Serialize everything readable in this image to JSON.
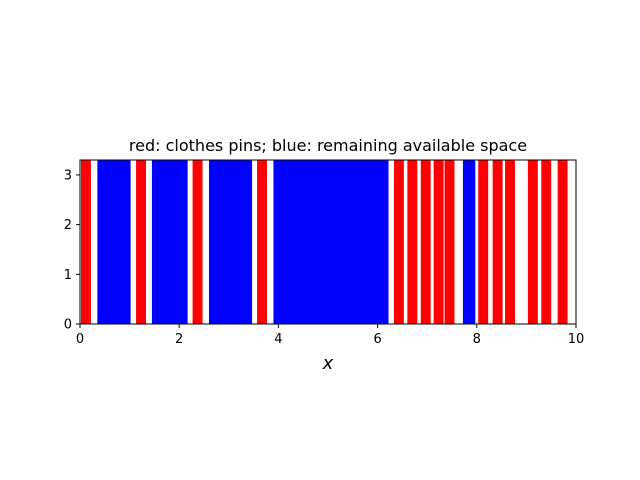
{
  "chart_data": {
    "type": "bar",
    "title": "red: clothes pins; blue: remaining available space",
    "xlabel": "x",
    "ylabel": "",
    "xlim": [
      0,
      10
    ],
    "ylim": [
      0,
      3.3
    ],
    "xticks": [
      0,
      2,
      4,
      6,
      8,
      10
    ],
    "yticks": [
      0,
      1,
      2,
      3
    ],
    "grid": false,
    "bar_height": 3.3,
    "colors": {
      "pin": "#ff0000",
      "space": "#0000ff"
    },
    "series": [
      {
        "color_key": "pin",
        "intervals": [
          [
            0.02,
            0.22
          ],
          [
            1.13,
            1.33
          ],
          [
            2.27,
            2.47
          ],
          [
            3.57,
            3.77
          ],
          [
            6.33,
            6.53
          ],
          [
            6.6,
            6.8
          ],
          [
            6.87,
            7.07
          ],
          [
            7.13,
            7.33
          ],
          [
            7.35,
            7.55
          ],
          [
            8.03,
            8.23
          ],
          [
            8.32,
            8.52
          ],
          [
            8.57,
            8.77
          ],
          [
            9.03,
            9.23
          ],
          [
            9.3,
            9.5
          ],
          [
            9.63,
            9.83
          ]
        ]
      },
      {
        "color_key": "space",
        "intervals": [
          [
            0.35,
            1.02
          ],
          [
            1.45,
            2.17
          ],
          [
            2.6,
            3.47
          ],
          [
            3.9,
            6.22
          ],
          [
            7.72,
            7.97
          ]
        ]
      }
    ]
  }
}
